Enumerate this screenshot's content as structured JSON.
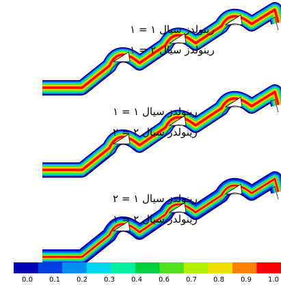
{
  "panels": [
    {
      "labels": [
        "رینولدز سیال ۱ = ۱",
        "رینولدز سیال ۲ = ۱"
      ]
    },
    {
      "labels": [
        "رینولدز سیال ۱ = ۱",
        "رینولدز سیال ۲ = ۲"
      ]
    },
    {
      "labels": [
        "رینولدز سیال ۱ = ۲",
        "رینولدز سیال ۲ = ۱"
      ]
    }
  ],
  "colorbar": {
    "colors": [
      "#0000b4",
      "#0040e0",
      "#0090f0",
      "#00d8f0",
      "#00f0a0",
      "#00d040",
      "#50e020",
      "#b0f000",
      "#f0e000",
      "#ff8000",
      "#ff0000"
    ],
    "ticks": [
      "0.0",
      "0.1",
      "0.2",
      "0.3",
      "0.4",
      "0.6",
      "0.7",
      "0.8",
      "0.9",
      "1.0"
    ]
  }
}
